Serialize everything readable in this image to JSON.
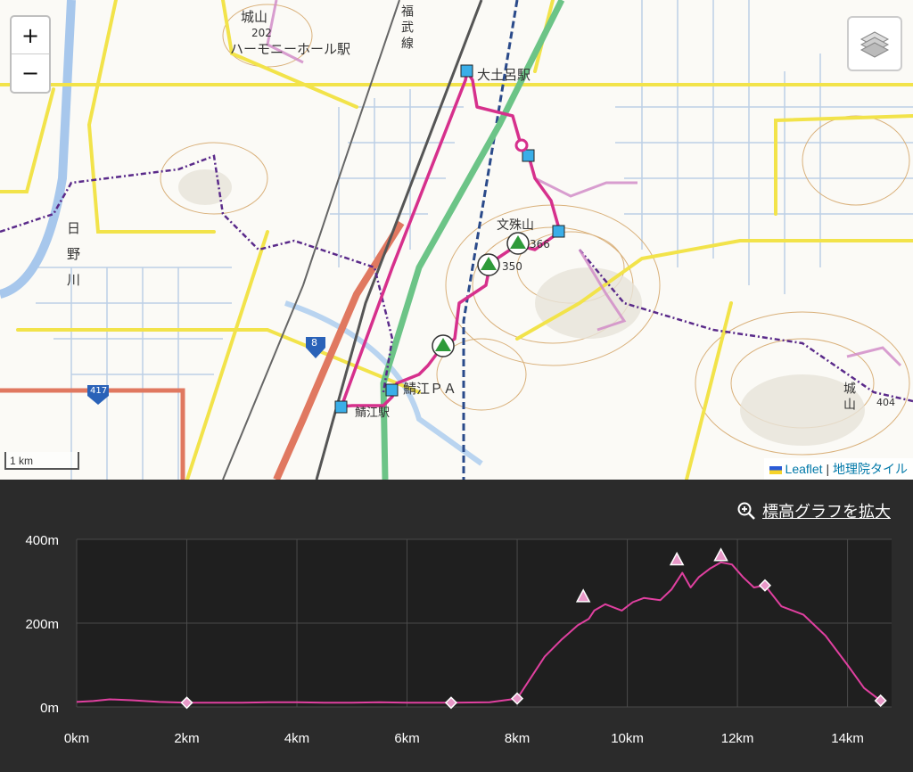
{
  "map": {
    "zoom_in": "+",
    "zoom_out": "−",
    "scale_label": "1 km",
    "attribution": {
      "leaflet": "Leaflet",
      "separator": " | ",
      "tiles": "地理院タイル"
    },
    "labels": {
      "station_harmony": "ハーモニーホール駅",
      "station_odaiji": "大土呂駅",
      "station_sabae": "鯖江駅",
      "pa_sabae": "鯖江ＰＡ",
      "mt_monju": "文殊山",
      "mt_joyama_n": "城山",
      "mt_joyama_e": "城山",
      "river_hino": "日野川",
      "railway_fukubu": "福武線",
      "elev_202": "202",
      "elev_366": "366",
      "elev_350": "350",
      "elev_404": "404",
      "route_8": "8",
      "route_417": "417"
    }
  },
  "chart": {
    "expand_label": "標高グラフを拡大",
    "colors": {
      "line": "#e040a0",
      "grid": "#4a4a4a",
      "plot_bg": "#1f1f1f",
      "text": "#ffffff"
    }
  },
  "chart_data": {
    "type": "line",
    "xlabel": "",
    "ylabel": "",
    "x_unit": "km",
    "y_unit": "m",
    "xlim": [
      0,
      14.8
    ],
    "ylim": [
      0,
      400
    ],
    "x_ticks": [
      "0km",
      "2km",
      "4km",
      "6km",
      "8km",
      "10km",
      "12km",
      "14km"
    ],
    "y_ticks": [
      "0m",
      "200m",
      "400m"
    ],
    "series": [
      {
        "points": [
          [
            0,
            12
          ],
          [
            0.3,
            14
          ],
          [
            0.6,
            18
          ],
          [
            1.0,
            16
          ],
          [
            1.5,
            12
          ],
          [
            2.0,
            10
          ],
          [
            2.5,
            10
          ],
          [
            3.0,
            10
          ],
          [
            3.5,
            11
          ],
          [
            4.0,
            11
          ],
          [
            4.5,
            10
          ],
          [
            5.0,
            10
          ],
          [
            5.5,
            11
          ],
          [
            6.0,
            10
          ],
          [
            6.5,
            10
          ],
          [
            6.8,
            10
          ],
          [
            7.5,
            11
          ],
          [
            8.0,
            20
          ],
          [
            8.2,
            60
          ],
          [
            8.5,
            120
          ],
          [
            8.8,
            160
          ],
          [
            9.1,
            195
          ],
          [
            9.3,
            210
          ],
          [
            9.4,
            230
          ],
          [
            9.6,
            245
          ],
          [
            9.9,
            230
          ],
          [
            10.1,
            250
          ],
          [
            10.3,
            260
          ],
          [
            10.6,
            255
          ],
          [
            10.8,
            280
          ],
          [
            11.0,
            320
          ],
          [
            11.15,
            285
          ],
          [
            11.3,
            310
          ],
          [
            11.5,
            330
          ],
          [
            11.7,
            345
          ],
          [
            11.9,
            340
          ],
          [
            12.1,
            310
          ],
          [
            12.3,
            285
          ],
          [
            12.5,
            290
          ],
          [
            12.8,
            240
          ],
          [
            13.2,
            220
          ],
          [
            13.6,
            170
          ],
          [
            14.0,
            100
          ],
          [
            14.3,
            45
          ],
          [
            14.6,
            15
          ]
        ]
      }
    ],
    "markers": [
      {
        "x": 2.0,
        "y": 10,
        "shape": "diamond"
      },
      {
        "x": 6.8,
        "y": 10,
        "shape": "diamond"
      },
      {
        "x": 8.0,
        "y": 20,
        "shape": "diamond"
      },
      {
        "x": 9.2,
        "y": 262,
        "shape": "triangle"
      },
      {
        "x": 10.9,
        "y": 350,
        "shape": "triangle"
      },
      {
        "x": 11.7,
        "y": 360,
        "shape": "triangle"
      },
      {
        "x": 12.5,
        "y": 290,
        "shape": "diamond"
      },
      {
        "x": 14.6,
        "y": 15,
        "shape": "diamond"
      }
    ]
  }
}
